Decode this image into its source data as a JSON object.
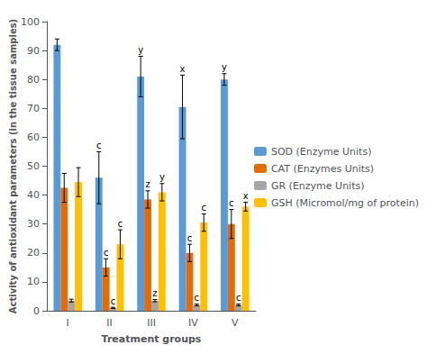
{
  "chart_data": {
    "type": "bar",
    "xlabel": "Treatment groups",
    "ylabel": "Activity of antioxidant parameters (in the tissue samples)",
    "categories": [
      "I",
      "II",
      "III",
      "IV",
      "V"
    ],
    "series": [
      {
        "name": "SOD (Enzyme Units)",
        "color": "#5B9BD5",
        "values": [
          92,
          46,
          81,
          70.5,
          80
        ],
        "errors": [
          2,
          9,
          7,
          11,
          2
        ],
        "annotations": [
          null,
          "c",
          "y",
          "x",
          "y"
        ]
      },
      {
        "name": "CAT (Enzymes Units)",
        "color": "#E36C09",
        "values": [
          42.5,
          15,
          38.5,
          20,
          30
        ],
        "errors": [
          5,
          3,
          3,
          3,
          5
        ],
        "annotations": [
          null,
          "c",
          "z",
          "c",
          "c"
        ]
      },
      {
        "name": "GR (Enzyme Units)",
        "color": "#A5A5A5",
        "values": [
          3.5,
          1,
          3.5,
          2,
          2
        ],
        "errors": [
          0.5,
          0.2,
          0.4,
          0.3,
          0.3
        ],
        "annotations": [
          null,
          "c",
          "z",
          "c",
          "c"
        ]
      },
      {
        "name": "GSH (Micromol/mg of protein)",
        "color": "#FFC000",
        "values": [
          44.5,
          23,
          41,
          30.5,
          36
        ],
        "errors": [
          5,
          5,
          3,
          3,
          1.5
        ],
        "annotations": [
          null,
          "c",
          "y",
          "c",
          "x"
        ]
      }
    ],
    "ylim": [
      0,
      100
    ],
    "yticks": [
      0,
      10,
      20,
      30,
      40,
      50,
      60,
      70,
      80,
      90,
      100
    ],
    "grid": false,
    "legend": "right"
  }
}
